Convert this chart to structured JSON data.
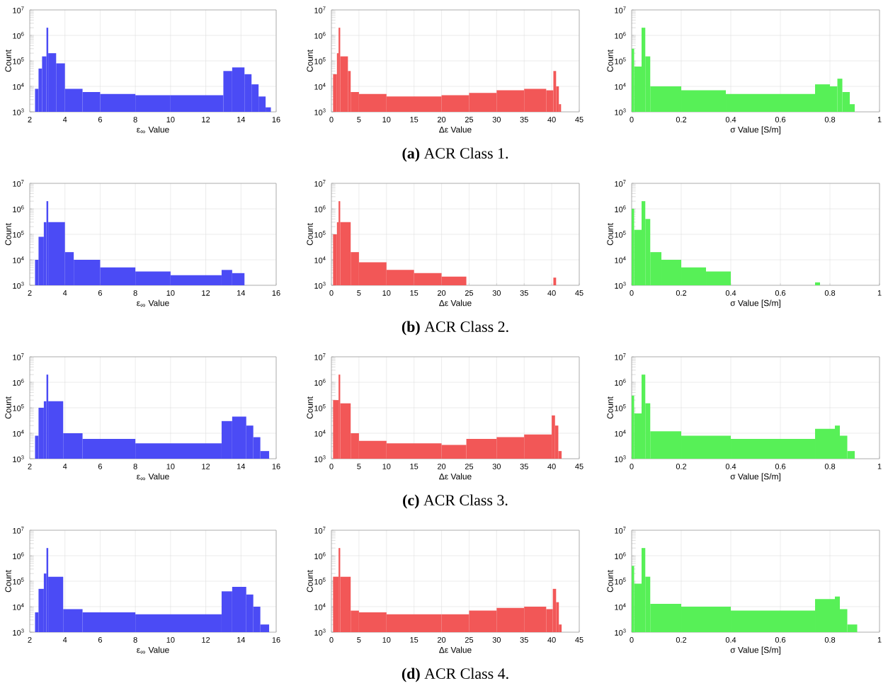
{
  "chart_data": [
    {
      "type": "histogram",
      "xlabel": "ε$_{∞}$ Value",
      "ylabel": "Count",
      "color": "#4b4bf5",
      "log": "y",
      "grid": true,
      "xlim": [
        2,
        16
      ],
      "xticks": [
        2,
        4,
        6,
        8,
        10,
        12,
        14,
        16
      ],
      "ylim": [
        1000,
        10000000
      ],
      "yticks": [
        {
          "value": 1000,
          "label": "10$^{3}$"
        },
        {
          "value": 10000,
          "label": "10$^{4}$"
        },
        {
          "value": 100000,
          "label": "10$^{5}$"
        },
        {
          "value": 1000000,
          "label": "10$^{6}$"
        },
        {
          "value": 10000000,
          "label": "10$^{7}$"
        }
      ],
      "bins": [
        2.3,
        2.5,
        2.7,
        2.95,
        3.05,
        3.5,
        4.0,
        5,
        6,
        8,
        10,
        13,
        13.5,
        14.2,
        14.6,
        15,
        15.4,
        15.7
      ],
      "values": [
        8000,
        50000,
        150000,
        2000000,
        200000,
        80000,
        8000,
        6000,
        5000,
        4500,
        4500,
        40000,
        55000,
        30000,
        12000,
        4000,
        1500
      ]
    },
    {
      "type": "histogram",
      "xlabel": "Δε Value",
      "ylabel": "Count",
      "color": "#f25757",
      "log": "y",
      "grid": true,
      "xlim": [
        0,
        45
      ],
      "xticks": [
        0,
        5,
        10,
        15,
        20,
        25,
        30,
        35,
        40,
        45
      ],
      "ylim": [
        1000,
        10000000
      ],
      "yticks": [
        {
          "value": 1000,
          "label": "10$^{3}$"
        },
        {
          "value": 10000,
          "label": "10$^{4}$"
        },
        {
          "value": 100000,
          "label": "10$^{5}$"
        },
        {
          "value": 1000000,
          "label": "10$^{6}$"
        },
        {
          "value": 10000000,
          "label": "10$^{7}$"
        }
      ],
      "bins": [
        0.3,
        1,
        1.3,
        1.6,
        3,
        3.5,
        5,
        10,
        20,
        25,
        30,
        35,
        39,
        40.3,
        40.8,
        41.3,
        41.7
      ],
      "values": [
        30000,
        200000,
        2000000,
        150000,
        40000,
        6000,
        5000,
        4000,
        4500,
        5500,
        7000,
        8000,
        7000,
        40000,
        10000,
        2000
      ],
      "annotations": [
        "**(a)** ACR Class 1."
      ]
    },
    {
      "type": "histogram",
      "xlabel": "σ Value [S/m]",
      "ylabel": "Count",
      "color": "#57f057",
      "log": "y",
      "grid": true,
      "xlim": [
        0,
        1
      ],
      "xticks": [
        0,
        0.2,
        0.4,
        0.6,
        0.8,
        1
      ],
      "ylim": [
        1000,
        10000000
      ],
      "yticks": [
        {
          "value": 1000,
          "label": "10$^{3}$"
        },
        {
          "value": 10000,
          "label": "10$^{4}$"
        },
        {
          "value": 100000,
          "label": "10$^{5}$"
        },
        {
          "value": 1000000,
          "label": "10$^{6}$"
        },
        {
          "value": 10000000,
          "label": "10$^{7}$"
        }
      ],
      "bins": [
        0,
        0.01,
        0.04,
        0.055,
        0.075,
        0.2,
        0.38,
        0.74,
        0.8,
        0.83,
        0.85,
        0.88,
        0.9
      ],
      "values": [
        300000,
        60000,
        2000000,
        150000,
        10000,
        7000,
        5000,
        12000,
        10000,
        20000,
        6000,
        2000
      ]
    },
    {
      "type": "histogram",
      "xlabel": "ε$_{∞}$ Value",
      "ylabel": "Count",
      "color": "#4b4bf5",
      "log": "y",
      "grid": true,
      "xlim": [
        2,
        16
      ],
      "xticks": [
        2,
        4,
        6,
        8,
        10,
        12,
        14,
        16
      ],
      "ylim": [
        1000,
        10000000
      ],
      "yticks": [
        {
          "value": 1000,
          "label": "10$^{3}$"
        },
        {
          "value": 10000,
          "label": "10$^{4}$"
        },
        {
          "value": 100000,
          "label": "10$^{5}$"
        },
        {
          "value": 1000000,
          "label": "10$^{6}$"
        },
        {
          "value": 10000000,
          "label": "10$^{7}$"
        }
      ],
      "bins": [
        2.3,
        2.5,
        2.8,
        2.95,
        3.05,
        4,
        4.5,
        6,
        8,
        10,
        12.9,
        13.5,
        14.2
      ],
      "values": [
        10000,
        80000,
        300000,
        2000000,
        300000,
        20000,
        10000,
        5000,
        3500,
        2500,
        4000,
        3000
      ]
    },
    {
      "type": "histogram",
      "xlabel": "Δε Value",
      "ylabel": "Count",
      "color": "#f25757",
      "log": "y",
      "grid": true,
      "xlim": [
        0,
        45
      ],
      "xticks": [
        0,
        5,
        10,
        15,
        20,
        25,
        30,
        35,
        40,
        45
      ],
      "ylim": [
        1000,
        10000000
      ],
      "yticks": [
        {
          "value": 1000,
          "label": "10$^{3}$"
        },
        {
          "value": 10000,
          "label": "10$^{4}$"
        },
        {
          "value": 100000,
          "label": "10$^{5}$"
        },
        {
          "value": 1000000,
          "label": "10$^{6}$"
        },
        {
          "value": 10000000,
          "label": "10$^{7}$"
        }
      ],
      "bins": [
        0.3,
        1,
        1.3,
        1.6,
        3.5,
        5,
        10,
        15,
        20,
        24.5,
        40.3,
        40.8
      ],
      "values": [
        100000,
        300000,
        2000000,
        300000,
        20000,
        8000,
        4000,
        3000,
        2200,
        null,
        2000
      ],
      "annotations": [
        "**(b)** ACR Class 2."
      ]
    },
    {
      "type": "histogram",
      "xlabel": "σ Value [S/m]",
      "ylabel": "Count",
      "color": "#57f057",
      "log": "y",
      "grid": true,
      "xlim": [
        0,
        1
      ],
      "xticks": [
        0,
        0.2,
        0.4,
        0.6,
        0.8,
        1
      ],
      "ylim": [
        1000,
        10000000
      ],
      "yticks": [
        {
          "value": 1000,
          "label": "10$^{3}$"
        },
        {
          "value": 10000,
          "label": "10$^{4}$"
        },
        {
          "value": 100000,
          "label": "10$^{5}$"
        },
        {
          "value": 1000000,
          "label": "10$^{6}$"
        },
        {
          "value": 10000000,
          "label": "10$^{7}$"
        }
      ],
      "bins": [
        0,
        0.01,
        0.04,
        0.055,
        0.075,
        0.12,
        0.2,
        0.3,
        0.4,
        0.74,
        0.76
      ],
      "values": [
        1000000,
        150000,
        2000000,
        400000,
        20000,
        10000,
        5000,
        3500,
        null,
        1300
      ]
    },
    {
      "type": "histogram",
      "xlabel": "ε$_{∞}$ Value",
      "ylabel": "Count",
      "color": "#4b4bf5",
      "log": "y",
      "grid": true,
      "xlim": [
        2,
        16
      ],
      "xticks": [
        2,
        4,
        6,
        8,
        10,
        12,
        14,
        16
      ],
      "ylim": [
        1000,
        10000000
      ],
      "yticks": [
        {
          "value": 1000,
          "label": "10$^{3}$"
        },
        {
          "value": 10000,
          "label": "10$^{4}$"
        },
        {
          "value": 100000,
          "label": "10$^{5}$"
        },
        {
          "value": 1000000,
          "label": "10$^{6}$"
        },
        {
          "value": 10000000,
          "label": "10$^{7}$"
        }
      ],
      "bins": [
        2.3,
        2.5,
        2.8,
        2.95,
        3.05,
        3.9,
        5,
        8,
        12.9,
        13.5,
        14.3,
        14.7,
        15.1,
        15.6
      ],
      "values": [
        8000,
        100000,
        180000,
        2000000,
        180000,
        10000,
        6000,
        4000,
        30000,
        45000,
        20000,
        7000,
        2000
      ]
    },
    {
      "type": "histogram",
      "xlabel": "Δε Value",
      "ylabel": "Count",
      "color": "#f25757",
      "log": "y",
      "grid": true,
      "xlim": [
        0,
        45
      ],
      "xticks": [
        0,
        5,
        10,
        15,
        20,
        25,
        30,
        35,
        40,
        45
      ],
      "ylim": [
        1000,
        10000000
      ],
      "yticks": [
        {
          "value": 1000,
          "label": "10$^{3}$"
        },
        {
          "value": 10000,
          "label": "10$^{4}$"
        },
        {
          "value": 100000,
          "label": "10$^{5}$"
        },
        {
          "value": 1000000,
          "label": "10$^{6}$"
        },
        {
          "value": 10000000,
          "label": "10$^{7}$"
        }
      ],
      "bins": [
        0.3,
        1.3,
        1.6,
        3.5,
        5,
        10,
        20,
        24.5,
        30,
        35,
        40,
        40.6,
        41.2,
        41.8
      ],
      "values": [
        200000,
        2000000,
        150000,
        10000,
        5000,
        4000,
        3500,
        6000,
        7000,
        9000,
        50000,
        20000,
        2000
      ],
      "annotations": [
        "**(c)** ACR Class 3."
      ]
    },
    {
      "type": "histogram",
      "xlabel": "σ Value [S/m]",
      "ylabel": "Count",
      "color": "#57f057",
      "log": "y",
      "grid": true,
      "xlim": [
        0,
        1
      ],
      "xticks": [
        0,
        0.2,
        0.4,
        0.6,
        0.8,
        1
      ],
      "ylim": [
        1000,
        10000000
      ],
      "yticks": [
        {
          "value": 1000,
          "label": "10$^{3}$"
        },
        {
          "value": 10000,
          "label": "10$^{4}$"
        },
        {
          "value": 100000,
          "label": "10$^{5}$"
        },
        {
          "value": 1000000,
          "label": "10$^{6}$"
        },
        {
          "value": 10000000,
          "label": "10$^{7}$"
        }
      ],
      "bins": [
        0,
        0.01,
        0.04,
        0.055,
        0.075,
        0.2,
        0.4,
        0.74,
        0.82,
        0.84,
        0.87,
        0.9
      ],
      "values": [
        300000,
        60000,
        2000000,
        150000,
        12000,
        8000,
        6000,
        15000,
        20000,
        8000,
        2000
      ]
    },
    {
      "type": "histogram",
      "xlabel": "ε$_{∞}$ Value",
      "ylabel": "Count",
      "color": "#4b4bf5",
      "log": "y",
      "grid": true,
      "xlim": [
        2,
        16
      ],
      "xticks": [
        2,
        4,
        6,
        8,
        10,
        12,
        14,
        16
      ],
      "ylim": [
        1000,
        10000000
      ],
      "yticks": [
        {
          "value": 1000,
          "label": "10$^{3}$"
        },
        {
          "value": 10000,
          "label": "10$^{4}$"
        },
        {
          "value": 100000,
          "label": "10$^{5}$"
        },
        {
          "value": 1000000,
          "label": "10$^{6}$"
        },
        {
          "value": 10000000,
          "label": "10$^{7}$"
        }
      ],
      "bins": [
        2.3,
        2.5,
        2.8,
        2.95,
        3.05,
        3.9,
        5,
        8,
        12.9,
        13.5,
        14.3,
        14.7,
        15.1,
        15.6
      ],
      "values": [
        6000,
        50000,
        200000,
        2000000,
        150000,
        8000,
        6000,
        5000,
        40000,
        60000,
        30000,
        10000,
        2000
      ]
    },
    {
      "type": "histogram",
      "xlabel": "Δε Value",
      "ylabel": "Count",
      "color": "#f25757",
      "log": "y",
      "grid": true,
      "xlim": [
        0,
        45
      ],
      "xticks": [
        0,
        5,
        10,
        15,
        20,
        25,
        30,
        35,
        40,
        45
      ],
      "ylim": [
        1000,
        10000000
      ],
      "yticks": [
        {
          "value": 1000,
          "label": "10$^{3}$"
        },
        {
          "value": 10000,
          "label": "10$^{4}$"
        },
        {
          "value": 100000,
          "label": "10$^{5}$"
        },
        {
          "value": 1000000,
          "label": "10$^{6}$"
        },
        {
          "value": 10000000,
          "label": "10$^{7}$"
        }
      ],
      "bins": [
        0.3,
        1.3,
        1.6,
        3.5,
        5,
        10,
        20,
        25,
        30,
        35,
        39,
        40.2,
        40.8,
        41.3,
        41.8
      ],
      "values": [
        150000,
        2000000,
        150000,
        7000,
        6000,
        5000,
        5000,
        7000,
        9000,
        10000,
        8000,
        50000,
        15000,
        2000
      ],
      "annotations": [
        "**(d)** ACR Class 4."
      ]
    },
    {
      "type": "histogram",
      "xlabel": "σ Value [S/m]",
      "ylabel": "Count",
      "color": "#57f057",
      "log": "y",
      "grid": true,
      "xlim": [
        0,
        1
      ],
      "xticks": [
        0,
        0.2,
        0.4,
        0.6,
        0.8,
        1
      ],
      "ylim": [
        1000,
        10000000
      ],
      "yticks": [
        {
          "value": 1000,
          "label": "10$^{3}$"
        },
        {
          "value": 10000,
          "label": "10$^{4}$"
        },
        {
          "value": 100000,
          "label": "10$^{5}$"
        },
        {
          "value": 1000000,
          "label": "10$^{6}$"
        },
        {
          "value": 10000000,
          "label": "10$^{7}$"
        }
      ],
      "bins": [
        0,
        0.01,
        0.04,
        0.055,
        0.075,
        0.2,
        0.4,
        0.74,
        0.82,
        0.84,
        0.87,
        0.91
      ],
      "values": [
        400000,
        80000,
        2000000,
        150000,
        13000,
        10000,
        7000,
        20000,
        25000,
        8000,
        2000
      ]
    }
  ]
}
